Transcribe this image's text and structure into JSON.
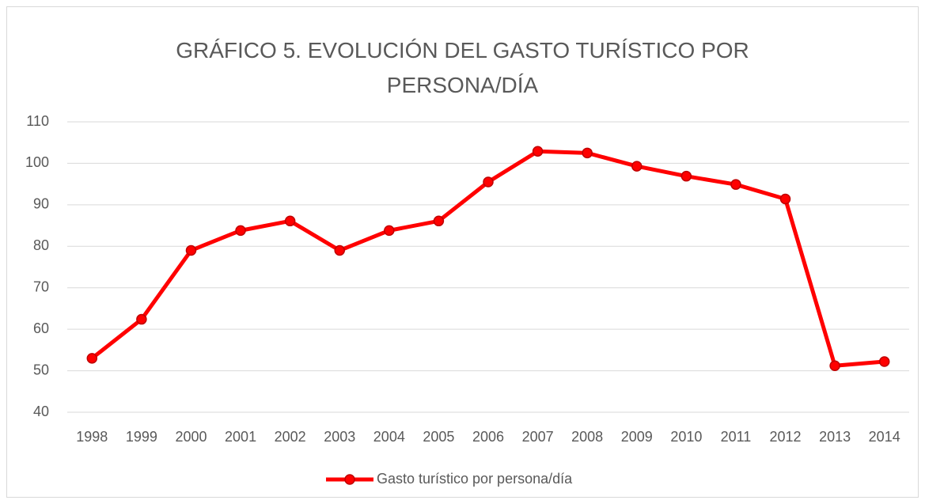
{
  "chart_data": {
    "type": "line",
    "title": "GRÁFICO 5. EVOLUCIÓN DEL GASTO TURÍSTICO POR PERSONA/DÍA",
    "categories": [
      "1998",
      "1999",
      "2000",
      "2001",
      "2002",
      "2003",
      "2004",
      "2005",
      "2006",
      "2007",
      "2008",
      "2009",
      "2010",
      "2011",
      "2012",
      "2013",
      "2014"
    ],
    "series": [
      {
        "name": "Gasto turístico por persona/día",
        "color": "#ff0000",
        "values": [
          53,
          62.4,
          79,
          83.8,
          86.1,
          79,
          83.8,
          86.1,
          95.5,
          102.9,
          102.5,
          99.3,
          96.9,
          94.9,
          91.4,
          51.2,
          52.2
        ]
      }
    ],
    "ylim": [
      40,
      110
    ],
    "yticks": [
      40,
      50,
      60,
      70,
      80,
      90,
      100,
      110
    ],
    "grid": true,
    "legend": "bottom"
  }
}
